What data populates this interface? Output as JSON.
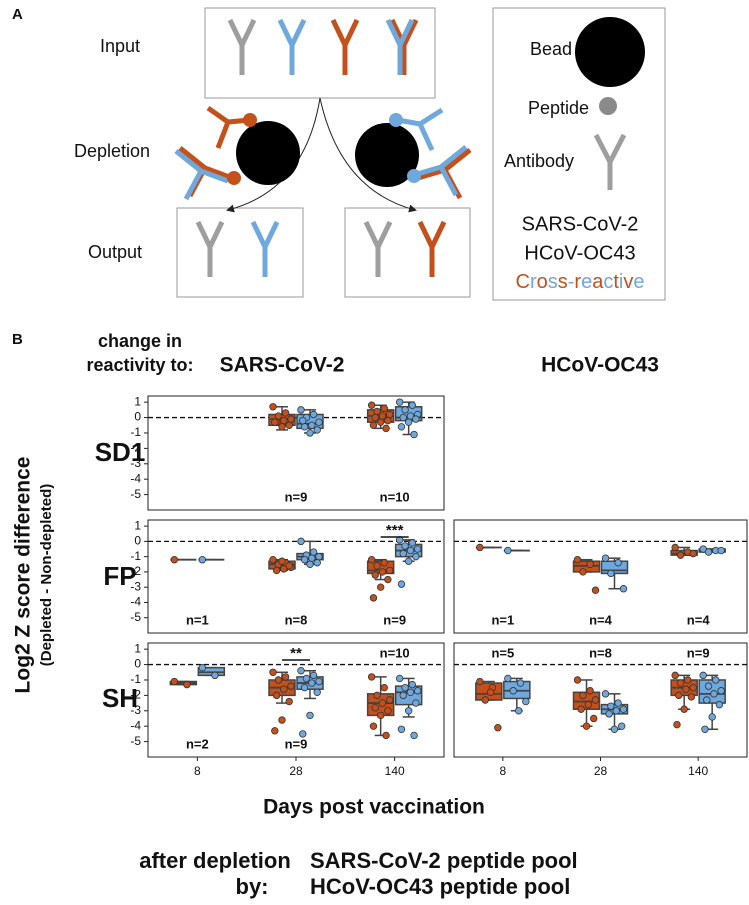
{
  "diagram": {
    "label": "A",
    "rows": [
      "Input",
      "Depletion",
      "Output"
    ],
    "legend": {
      "items": [
        "Bead",
        "Peptide",
        "Antibody"
      ],
      "groups": [
        {
          "text": "SARS-CoV-2",
          "color": "#c4501b"
        },
        {
          "text": "HCoV-OC43",
          "color": "#6fa8dc"
        },
        {
          "text": "Cross-reactive"
        }
      ]
    }
  },
  "panel_b": {
    "label": "B",
    "heading": [
      "change in",
      "reactivity to:"
    ],
    "column_titles": [
      "SARS-CoV-2",
      "HCoV-OC43"
    ],
    "row_labels": [
      "SD1",
      "FP",
      "SH"
    ],
    "ylabel": "Log2 Z score difference",
    "ylabel_sub": "(Depleted - Non-depleted)",
    "xlabel": "Days post vaccination",
    "legend": {
      "title": [
        "after depletion",
        "by:"
      ],
      "entries": [
        {
          "name": "SARS-CoV-2 peptide pool",
          "color": "#c4501b"
        },
        {
          "name": "HCoV-OC43 peptide pool",
          "color": "#6fa8dc"
        }
      ]
    }
  },
  "chart_data": [
    {
      "type": "box",
      "categories": [
        "8",
        "28",
        "140"
      ],
      "ylim": [
        -6,
        1.4
      ],
      "yticks": [
        1,
        0,
        -1,
        -2,
        -3,
        -4,
        -5
      ],
      "hline": 0,
      "n_labels": [
        null,
        "n=9",
        "n=10"
      ],
      "n_label_pos": [
        "bottom",
        "bottom",
        "bottom"
      ],
      "annotations": [],
      "series": [
        {
          "color": "#c4501b",
          "boxes": [
            null,
            {
              "q1": -0.5,
              "median": -0.1,
              "q3": 0.2,
              "whislo": -0.8,
              "whishi": 0.7,
              "points": [
                0.7,
                0.3,
                0.1,
                -0.1,
                -0.2,
                -0.3,
                -0.5,
                -0.6,
                -0.3
              ]
            },
            {
              "q1": -0.3,
              "median": 0.1,
              "q3": 0.5,
              "whislo": -0.7,
              "whishi": 0.8,
              "points": [
                0.8,
                0.6,
                0.4,
                0.2,
                0.1,
                0,
                -0.2,
                -0.3,
                -0.5,
                -0.7
              ]
            }
          ]
        },
        {
          "color": "#6fa8dc",
          "boxes": [
            null,
            {
              "q1": -0.7,
              "median": -0.4,
              "q3": 0.2,
              "whislo": -1,
              "whishi": 0.5,
              "points": [
                0.5,
                0.2,
                0,
                -0.3,
                -0.5,
                -0.6,
                -0.8,
                -1,
                -0.2
              ]
            },
            {
              "q1": -0.2,
              "median": 0,
              "q3": 0.7,
              "whislo": -1.1,
              "whishi": 1,
              "points": [
                1,
                0.8,
                0.5,
                0.2,
                0.1,
                0,
                -0.1,
                -0.3,
                -0.6,
                -1.1
              ]
            }
          ]
        }
      ]
    },
    {
      "type": "box",
      "categories": [
        "8",
        "28",
        "140"
      ],
      "ylim": [
        -6,
        1.4
      ],
      "yticks": [
        1,
        0,
        -1,
        -2,
        -3,
        -4,
        -5
      ],
      "hline": 0,
      "n_labels": [
        "n=1",
        "n=8",
        "n=9"
      ],
      "n_label_pos": [
        "bottom",
        "bottom",
        "bottom"
      ],
      "annotations": [
        {
          "text": "***",
          "category": 2
        }
      ],
      "series": [
        {
          "color": "#c4501b",
          "boxes": [
            {
              "q1": -1.2,
              "median": -1.2,
              "q3": -1.2,
              "whislo": -1.2,
              "whishi": -1.2,
              "points": [
                -1.2
              ]
            },
            {
              "q1": -1.8,
              "median": -1.5,
              "q3": -1.3,
              "whislo": -1.9,
              "whishi": -1.2,
              "points": [
                -1.2,
                -1.4,
                -1.5,
                -1.7,
                -1.8,
                -1.9,
                -1.6,
                -1.3
              ]
            },
            {
              "q1": -2.1,
              "median": -1.9,
              "q3": -1.3,
              "whislo": -2.5,
              "whishi": -1.2,
              "points": [
                -1.2,
                -1.4,
                -1.6,
                -1.9,
                -2,
                -2.2,
                -2.5,
                -3,
                -3.7
              ]
            }
          ]
        },
        {
          "color": "#6fa8dc",
          "boxes": [
            {
              "q1": -1.2,
              "median": -1.2,
              "q3": -1.2,
              "whislo": -1.2,
              "whishi": -1.2,
              "points": [
                -1.2
              ]
            },
            {
              "q1": -1.2,
              "median": -1,
              "q3": -0.8,
              "whislo": -1.5,
              "whishi": 0,
              "points": [
                0,
                -0.7,
                -0.9,
                -1,
                -1.1,
                -1.2,
                -1.4,
                -1.5
              ]
            },
            {
              "q1": -1,
              "median": -0.6,
              "q3": -0.2,
              "whislo": -1.3,
              "whishi": 0.1,
              "points": [
                0.1,
                -0.1,
                -0.3,
                -0.5,
                -0.6,
                -0.8,
                -1,
                -1.3,
                -2.8
              ]
            }
          ]
        }
      ]
    },
    {
      "type": "box",
      "categories": [
        "8",
        "28",
        "140"
      ],
      "ylim": [
        -6,
        1.4
      ],
      "hline": 0,
      "n_labels": [
        "n=1",
        "n=4",
        "n=4"
      ],
      "n_label_pos": [
        "bottom",
        "bottom",
        "bottom"
      ],
      "annotations": [],
      "series": [
        {
          "color": "#c4501b",
          "boxes": [
            {
              "q1": -0.4,
              "median": -0.4,
              "q3": -0.4,
              "whislo": -0.4,
              "whishi": -0.4,
              "points": [
                -0.4
              ]
            },
            {
              "q1": -2,
              "median": -1.6,
              "q3": -1.3,
              "whislo": -2,
              "whishi": -1.2,
              "points": [
                -1.2,
                -1.5,
                -2,
                -3.2
              ]
            },
            {
              "q1": -0.9,
              "median": -0.8,
              "q3": -0.6,
              "whislo": -0.9,
              "whishi": -0.4,
              "points": [
                -0.4,
                -0.7,
                -0.9,
                -0.8
              ]
            }
          ]
        },
        {
          "color": "#6fa8dc",
          "boxes": [
            {
              "q1": -0.6,
              "median": -0.6,
              "q3": -0.6,
              "whislo": -0.6,
              "whishi": -0.6,
              "points": [
                -0.6
              ]
            },
            {
              "q1": -2.1,
              "median": -1.9,
              "q3": -1.3,
              "whislo": -3.1,
              "whishi": -1.1,
              "points": [
                -1.1,
                -1.4,
                -2.1,
                -3.1
              ]
            },
            {
              "q1": -0.7,
              "median": -0.6,
              "q3": -0.5,
              "whislo": -0.7,
              "whishi": -0.5,
              "points": [
                -0.5,
                -0.6,
                -0.7,
                -0.6
              ]
            }
          ]
        }
      ]
    },
    {
      "type": "box",
      "categories": [
        "8",
        "28",
        "140"
      ],
      "ylim": [
        -6,
        1.4
      ],
      "yticks": [
        1,
        0,
        -1,
        -2,
        -3,
        -4,
        -5
      ],
      "hline": 0,
      "n_labels": [
        "n=2",
        "n=9",
        "n=10"
      ],
      "n_label_pos": [
        "bottom",
        "bottom",
        "top"
      ],
      "annotations": [
        {
          "text": "**",
          "category": 1
        }
      ],
      "series": [
        {
          "color": "#c4501b",
          "boxes": [
            {
              "q1": -1.3,
              "median": -1.2,
              "q3": -1.1,
              "whislo": -1.3,
              "whishi": -1.1,
              "points": [
                -1.1,
                -1.3
              ]
            },
            {
              "q1": -2,
              "median": -1.5,
              "q3": -1,
              "whislo": -2.5,
              "whishi": -0.5,
              "points": [
                -0.5,
                -0.8,
                -1,
                -1.4,
                -1.6,
                -2,
                -2.4,
                -3.6,
                -4.3
              ]
            },
            {
              "q1": -3.3,
              "median": -2.5,
              "q3": -1.9,
              "whislo": -4.6,
              "whishi": -0.8,
              "points": [
                -0.8,
                -1.5,
                -2,
                -2.3,
                -2.5,
                -2.8,
                -3,
                -3.3,
                -4,
                -4.6
              ]
            }
          ]
        },
        {
          "color": "#6fa8dc",
          "boxes": [
            {
              "q1": -0.7,
              "median": -0.5,
              "q3": -0.2,
              "whislo": -0.7,
              "whishi": -0.2,
              "points": [
                -0.2,
                -0.7
              ]
            },
            {
              "q1": -1.6,
              "median": -1.2,
              "q3": -0.8,
              "whislo": -2.2,
              "whishi": -0.4,
              "points": [
                -0.4,
                -0.7,
                -0.9,
                -1.1,
                -1.2,
                -1.5,
                -1.8,
                -3.3,
                -4.5
              ]
            },
            {
              "q1": -2.6,
              "median": -1.8,
              "q3": -1.4,
              "whislo": -3.4,
              "whishi": -0.9,
              "points": [
                -0.9,
                -1.3,
                -1.5,
                -1.7,
                -1.8,
                -2,
                -2.5,
                -3,
                -4.2,
                -4.6
              ]
            }
          ]
        }
      ]
    },
    {
      "type": "box",
      "categories": [
        "8",
        "28",
        "140"
      ],
      "ylim": [
        -6,
        1.4
      ],
      "hline": 0,
      "n_labels": [
        "n=5",
        "n=8",
        "n=9"
      ],
      "n_label_pos": [
        "top",
        "top",
        "top"
      ],
      "annotations": [],
      "series": [
        {
          "color": "#c4501b",
          "boxes": [
            {
              "q1": -2.3,
              "median": -1.9,
              "q3": -1.2,
              "whislo": -2.3,
              "whishi": -1.1,
              "points": [
                -1.1,
                -1.5,
                -2.3,
                -4.1,
                -1.8
              ]
            },
            {
              "q1": -2.9,
              "median": -2.4,
              "q3": -1.8,
              "whislo": -4,
              "whishi": -1,
              "points": [
                -1,
                -1.7,
                -2,
                -2.3,
                -2.6,
                -2.9,
                -3.5,
                -4
              ]
            },
            {
              "q1": -2,
              "median": -1.5,
              "q3": -1,
              "whislo": -2.9,
              "whishi": -0.7,
              "points": [
                -0.7,
                -1,
                -1.2,
                -1.5,
                -1.6,
                -2,
                -2.1,
                -2.9,
                -3.9
              ]
            }
          ]
        },
        {
          "color": "#6fa8dc",
          "boxes": [
            {
              "q1": -2.2,
              "median": -1.7,
              "q3": -1.1,
              "whislo": -3,
              "whishi": -0.9,
              "points": [
                -0.9,
                -1.2,
                -1.7,
                -2.4,
                -3
              ]
            },
            {
              "q1": -3.2,
              "median": -2.9,
              "q3": -2.6,
              "whislo": -4.2,
              "whishi": -1.9,
              "points": [
                -1.9,
                -2.5,
                -2.7,
                -2.9,
                -3,
                -3.2,
                -4,
                -4.2
              ]
            },
            {
              "q1": -2.5,
              "median": -1.9,
              "q3": -1,
              "whislo": -4.2,
              "whishi": -0.7,
              "points": [
                -0.7,
                -1,
                -1.4,
                -1.7,
                -1.9,
                -2.3,
                -2.6,
                -3.4,
                -4.2
              ]
            }
          ]
        }
      ]
    }
  ]
}
